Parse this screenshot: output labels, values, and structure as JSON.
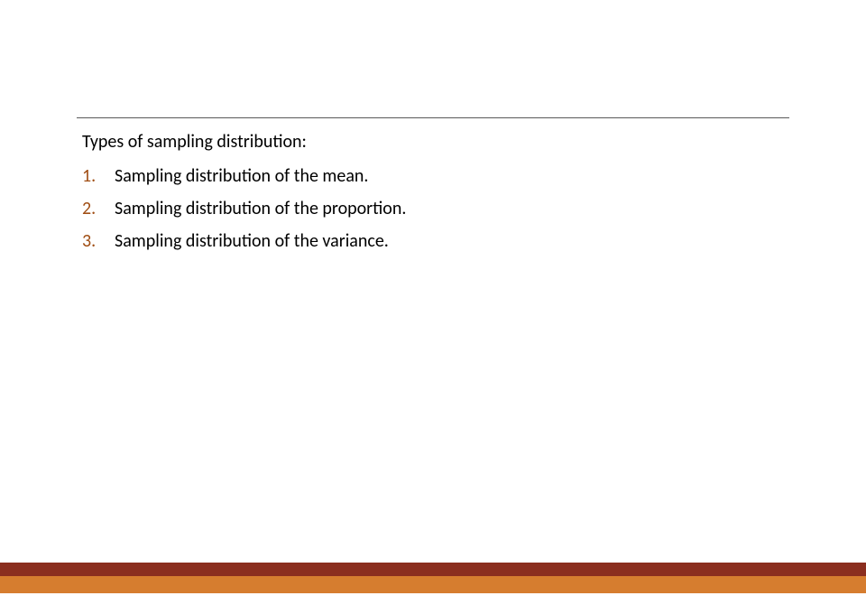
{
  "slide": {
    "heading": "Types of sampling distribution:",
    "list_number_color": "#a04e14",
    "items": [
      {
        "number": "1.",
        "text": "Sampling distribution of the mean."
      },
      {
        "number": "2.",
        "text": "Sampling distribution of the proportion."
      },
      {
        "number": "3.",
        "text": "Sampling distribution of the variance."
      }
    ],
    "styling": {
      "background_color": "#ffffff",
      "divider_color": "#595959",
      "text_color": "#000000",
      "footer_orange": "#d67d2f",
      "footer_red": "#8b2e1f",
      "heading_fontsize": 20,
      "body_fontsize": 20
    }
  }
}
